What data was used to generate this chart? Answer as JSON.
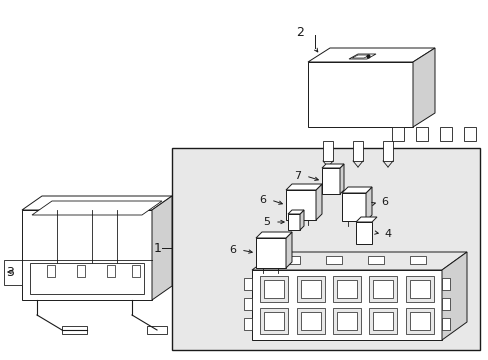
{
  "bg_color": "#ffffff",
  "line_color": "#1a1a1a",
  "gray_fill": "#e8e8e8",
  "mid_gray": "#d0d0d0",
  "dark_gray": "#b0b0b0",
  "fig_width": 4.89,
  "fig_height": 3.6,
  "dpi": 100
}
